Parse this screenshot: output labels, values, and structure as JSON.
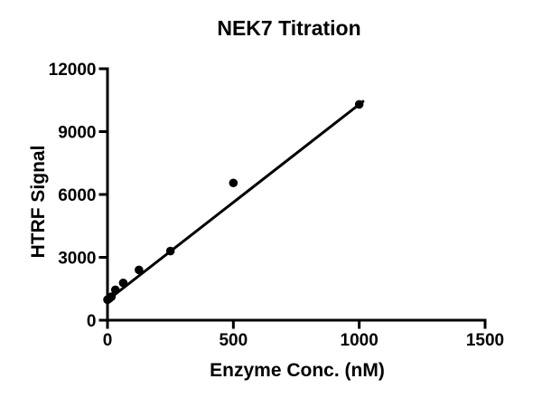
{
  "chart_data": {
    "type": "scatter",
    "title": "NEK7 Titration",
    "xlabel": "Enzyme Conc. (nM)",
    "ylabel": "HTRF Signal",
    "xlim": [
      0,
      1500
    ],
    "ylim": [
      0,
      12000
    ],
    "x_ticks": [
      0,
      500,
      1000,
      1500
    ],
    "y_ticks": [
      0,
      3000,
      6000,
      9000,
      12000
    ],
    "grid": false,
    "legend": "none",
    "marker_color": "#000000",
    "line_color": "#000000",
    "background_color": "#ffffff",
    "points": [
      {
        "x": 0,
        "y": 980
      },
      {
        "x": 3.9,
        "y": 1010
      },
      {
        "x": 7.8,
        "y": 1050
      },
      {
        "x": 15.6,
        "y": 1120
      },
      {
        "x": 31.3,
        "y": 1450
      },
      {
        "x": 62.5,
        "y": 1780
      },
      {
        "x": 125,
        "y": 2400
      },
      {
        "x": 250,
        "y": 3300
      },
      {
        "x": 500,
        "y": 6550
      },
      {
        "x": 1000,
        "y": 10300
      }
    ],
    "fit_line": {
      "type": "linear",
      "x_start": 0,
      "y_start": 950,
      "x_end": 1015,
      "y_end": 10440
    }
  }
}
